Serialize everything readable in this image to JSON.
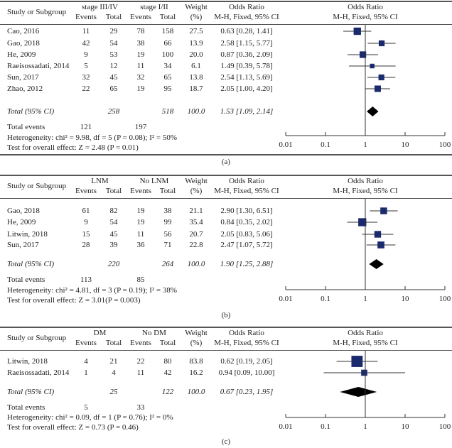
{
  "chart_data": [
    {
      "type": "forest",
      "panel_label": "(a)",
      "group1": "stage III/IV",
      "group2": "stage I/II",
      "headers": {
        "study": "Study or Subgroup",
        "events": "Events",
        "total": "Total",
        "weight": "Weight",
        "weight_unit": "(%)",
        "or": "Odds Ratio",
        "or_method": "M-H, Fixed, 95% CI"
      },
      "studies": [
        {
          "name": "Cao, 2016",
          "e1": "11",
          "t1": "29",
          "e2": "78",
          "t2": "158",
          "w": "27.5",
          "or": "0.63 [0.28, 1.41]",
          "est": 0.63,
          "lo": 0.28,
          "hi": 1.41
        },
        {
          "name": "Gao, 2018",
          "e1": "42",
          "t1": "54",
          "e2": "38",
          "t2": "66",
          "w": "13.9",
          "or": "2.58 [1.15, 5.77]",
          "est": 2.58,
          "lo": 1.15,
          "hi": 5.77
        },
        {
          "name": "He, 2009",
          "e1": "9",
          "t1": "53",
          "e2": "19",
          "t2": "100",
          "w": "20.0",
          "or": "0.87 [0.36, 2.09]",
          "est": 0.87,
          "lo": 0.36,
          "hi": 2.09
        },
        {
          "name": "Raeisossadati, 2014",
          "e1": "5",
          "t1": "12",
          "e2": "11",
          "t2": "34",
          "w": "6.1",
          "or": "1.49 [0.39, 5.78]",
          "est": 1.49,
          "lo": 0.39,
          "hi": 5.78
        },
        {
          "name": "Sun, 2017",
          "e1": "32",
          "t1": "45",
          "e2": "32",
          "t2": "65",
          "w": "13.8",
          "or": "2.54 [1.13, 5.69]",
          "est": 2.54,
          "lo": 1.13,
          "hi": 5.69
        },
        {
          "name": "Zhao, 2012",
          "e1": "22",
          "t1": "65",
          "e2": "19",
          "t2": "95",
          "w": "18.7",
          "or": "2.05 [1.00, 4.20]",
          "est": 2.05,
          "lo": 1.0,
          "hi": 4.2
        }
      ],
      "total": {
        "label": "Total (95% CI)",
        "t1": "258",
        "t2": "518",
        "w": "100.0",
        "or": "1.53 [1.09, 2.14]",
        "est": 1.53,
        "lo": 1.09,
        "hi": 2.14
      },
      "total_events": {
        "label": "Total events",
        "e1": "121",
        "e2": "197"
      },
      "heterogeneity": "Heterogeneity: chi² = 9.98, df = 5 (P = 0.08); I² = 50%",
      "overall": "Test for overall effect: Z = 2.48 (P = 0.01)",
      "xticks": [
        "0.01",
        "0.1",
        "1",
        "10",
        "100"
      ],
      "xscale": "log",
      "xlim": [
        0.01,
        100
      ]
    },
    {
      "type": "forest",
      "panel_label": "(b)",
      "group1": "LNM",
      "group2": "No LNM",
      "headers": {
        "study": "Study or Subgroup",
        "events": "Events",
        "total": "Total",
        "weight": "Weight",
        "weight_unit": "(%)",
        "or": "Odds Ratio",
        "or_method": "M-H, Fixed, 95% CI"
      },
      "studies": [
        {
          "name": "Gao, 2018",
          "e1": "61",
          "t1": "82",
          "e2": "19",
          "t2": "38",
          "w": "21.1",
          "or": "2.90 [1.30, 6.51]",
          "est": 2.9,
          "lo": 1.3,
          "hi": 6.51
        },
        {
          "name": "He, 2009",
          "e1": "9",
          "t1": "54",
          "e2": "19",
          "t2": "99",
          "w": "35.4",
          "or": "0.84 [0.35, 2.02]",
          "est": 0.84,
          "lo": 0.35,
          "hi": 2.02
        },
        {
          "name": "Litwin, 2018",
          "e1": "15",
          "t1": "45",
          "e2": "11",
          "t2": "56",
          "w": "20.7",
          "or": "2.05 [0.83, 5.06]",
          "est": 2.05,
          "lo": 0.83,
          "hi": 5.06
        },
        {
          "name": "Sun, 2017",
          "e1": "28",
          "t1": "39",
          "e2": "36",
          "t2": "71",
          "w": "22.8",
          "or": "2.47 [1.07, 5.72]",
          "est": 2.47,
          "lo": 1.07,
          "hi": 5.72
        }
      ],
      "total": {
        "label": "Total (95% CI)",
        "t1": "220",
        "t2": "264",
        "w": "100.0",
        "or": "1.90 [1.25, 2.88]",
        "est": 1.9,
        "lo": 1.25,
        "hi": 2.88
      },
      "total_events": {
        "label": "Total events",
        "e1": "113",
        "e2": "85"
      },
      "heterogeneity": "Heterogeneity: chi² = 4.81, df = 3 (P = 0.19); I² = 38%",
      "overall": "Test for overall effect: Z = 3.01(P = 0.003)",
      "xticks": [
        "0.01",
        "0.1",
        "1",
        "10",
        "100"
      ],
      "xscale": "log",
      "xlim": [
        0.01,
        100
      ]
    },
    {
      "type": "forest",
      "panel_label": "(c)",
      "group1": "DM",
      "group2": "No DM",
      "headers": {
        "study": "Study or Subgroup",
        "events": "Events",
        "total": "Total",
        "weight": "Weight",
        "weight_unit": "(%)",
        "or": "Odds Ratio",
        "or_method": "M-H, Fixed, 95% CI"
      },
      "studies": [
        {
          "name": "Litwin, 2018",
          "e1": "4",
          "t1": "21",
          "e2": "22",
          "t2": "80",
          "w": "83.8",
          "or": "0.62 [0.19, 2.05]",
          "est": 0.62,
          "lo": 0.19,
          "hi": 2.05
        },
        {
          "name": "Raeisossadati, 2014",
          "e1": "1",
          "t1": "4",
          "e2": "11",
          "t2": "42",
          "w": "16.2",
          "or": "0.94 [0.09, 10.00]",
          "est": 0.94,
          "lo": 0.09,
          "hi": 10.0
        }
      ],
      "total": {
        "label": "Total (95% CI)",
        "t1": "25",
        "t2": "122",
        "w": "100.0",
        "or": "0.67 [0.23, 1.95]",
        "est": 0.67,
        "lo": 0.23,
        "hi": 1.95
      },
      "total_events": {
        "label": "Total events",
        "e1": "5",
        "e2": "33"
      },
      "heterogeneity": "Heterogeneity: chi² = 0.09, df = 1 (P = 0.76); I² = 0%",
      "overall": "Test for overall effect: Z = 0.73 (P = 0.46)",
      "xticks": [
        "0.01",
        "0.1",
        "1",
        "10",
        "100"
      ],
      "xscale": "log",
      "xlim": [
        0.01,
        100
      ]
    }
  ],
  "colors": {
    "square": "#1a2a6c",
    "diamond": "#000000",
    "line": "#333333"
  }
}
